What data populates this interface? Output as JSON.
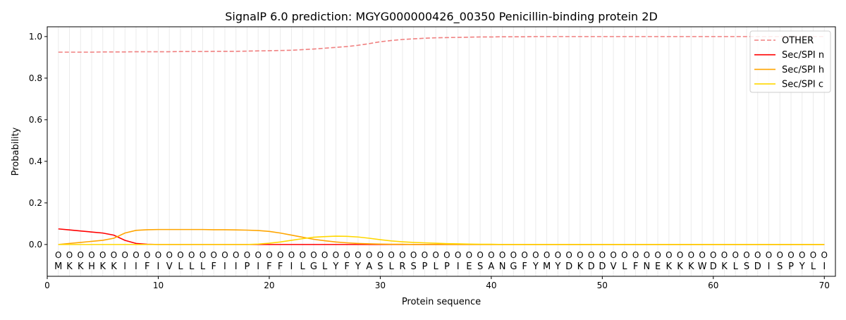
{
  "chart_data": {
    "type": "line",
    "title": "SignalP 6.0 prediction: MGYG000000426_00350 Penicillin-binding protein 2D",
    "xlabel": "Protein sequence",
    "ylabel": "Probability",
    "xlim": [
      0,
      71
    ],
    "ylim": [
      -0.153,
      1.047
    ],
    "xticks": [
      0,
      10,
      20,
      30,
      40,
      50,
      60,
      70
    ],
    "yticks": [
      0.0,
      0.2,
      0.4,
      0.6,
      0.8,
      1.0
    ],
    "ytick_labels": [
      "0.0",
      "0.2",
      "0.4",
      "0.6",
      "0.8",
      "1.0"
    ],
    "grid": "vertical lines at each residue",
    "legend_position": "top-right",
    "sequence": [
      "M",
      "K",
      "K",
      "H",
      "K",
      "K",
      "I",
      "I",
      "F",
      "I",
      "V",
      "L",
      "L",
      "L",
      "F",
      "I",
      "I",
      "P",
      "I",
      "F",
      "F",
      "I",
      "L",
      "G",
      "L",
      "Y",
      "F",
      "Y",
      "A",
      "S",
      "L",
      "R",
      "S",
      "P",
      "L",
      "P",
      "I",
      "E",
      "S",
      "A",
      "N",
      "G",
      "F",
      "Y",
      "M",
      "Y",
      "D",
      "K",
      "D",
      "D",
      "V",
      "L",
      "F",
      "N",
      "E",
      "K",
      "K",
      "K",
      "W",
      "D",
      "K",
      "L",
      "S",
      "D",
      "I",
      "S",
      "P",
      "Y",
      "L",
      "I"
    ],
    "region_label": "O",
    "series": [
      {
        "name": "OTHER",
        "color": "#f08080",
        "dash": true,
        "values": [
          0.925,
          0.925,
          0.925,
          0.925,
          0.926,
          0.926,
          0.926,
          0.927,
          0.927,
          0.927,
          0.927,
          0.928,
          0.928,
          0.928,
          0.929,
          0.929,
          0.929,
          0.93,
          0.931,
          0.932,
          0.933,
          0.934,
          0.937,
          0.94,
          0.944,
          0.948,
          0.952,
          0.958,
          0.966,
          0.975,
          0.981,
          0.986,
          0.989,
          0.992,
          0.994,
          0.995,
          0.996,
          0.997,
          0.998,
          0.998,
          0.999,
          0.999,
          0.999,
          1,
          1,
          1,
          1,
          1,
          1,
          1,
          1,
          1,
          1,
          1,
          1,
          1,
          1,
          1,
          1,
          1,
          1,
          1,
          1,
          1,
          1,
          1,
          1,
          1,
          1,
          1
        ]
      },
      {
        "name": "Sec/SPI n",
        "color": "#ff0000",
        "dash": false,
        "values": [
          0.075,
          0.07,
          0.065,
          0.06,
          0.055,
          0.045,
          0.02,
          0.005,
          0.001,
          0,
          0,
          0,
          0,
          0,
          0,
          0,
          0,
          0,
          0,
          0,
          0,
          0,
          0,
          0,
          0,
          0,
          0,
          0,
          0,
          0,
          0,
          0,
          0,
          0,
          0,
          0,
          0,
          0,
          0,
          0,
          0,
          0,
          0,
          0,
          0,
          0,
          0,
          0,
          0,
          0,
          0,
          0,
          0,
          0,
          0,
          0,
          0,
          0,
          0,
          0,
          0,
          0,
          0,
          0,
          0,
          0,
          0,
          0,
          0,
          0
        ]
      },
      {
        "name": "Sec/SPI h",
        "color": "#ffa500",
        "dash": false,
        "values": [
          0,
          0.005,
          0.01,
          0.015,
          0.02,
          0.03,
          0.055,
          0.068,
          0.071,
          0.072,
          0.072,
          0.072,
          0.072,
          0.072,
          0.071,
          0.071,
          0.07,
          0.069,
          0.067,
          0.063,
          0.055,
          0.045,
          0.035,
          0.025,
          0.018,
          0.012,
          0.008,
          0.005,
          0.003,
          0.002,
          0.001,
          0.001,
          0,
          0,
          0,
          0,
          0,
          0,
          0,
          0,
          0,
          0,
          0,
          0,
          0,
          0,
          0,
          0,
          0,
          0,
          0,
          0,
          0,
          0,
          0,
          0,
          0,
          0,
          0,
          0,
          0,
          0,
          0,
          0,
          0,
          0,
          0,
          0,
          0,
          0
        ]
      },
      {
        "name": "Sec/SPI c",
        "color": "#ffd700",
        "dash": false,
        "values": [
          0,
          0,
          0,
          0,
          0,
          0,
          0,
          0,
          0,
          0,
          0,
          0,
          0,
          0,
          0,
          0,
          0,
          0,
          0.002,
          0.006,
          0.012,
          0.02,
          0.028,
          0.035,
          0.038,
          0.04,
          0.039,
          0.036,
          0.03,
          0.023,
          0.017,
          0.013,
          0.01,
          0.008,
          0.006,
          0.004,
          0.003,
          0.002,
          0.001,
          0.001,
          0,
          0,
          0,
          0,
          0,
          0,
          0,
          0,
          0,
          0,
          0,
          0,
          0,
          0,
          0,
          0,
          0,
          0,
          0,
          0,
          0,
          0,
          0,
          0,
          0,
          0,
          0,
          0,
          0,
          0
        ]
      }
    ]
  }
}
